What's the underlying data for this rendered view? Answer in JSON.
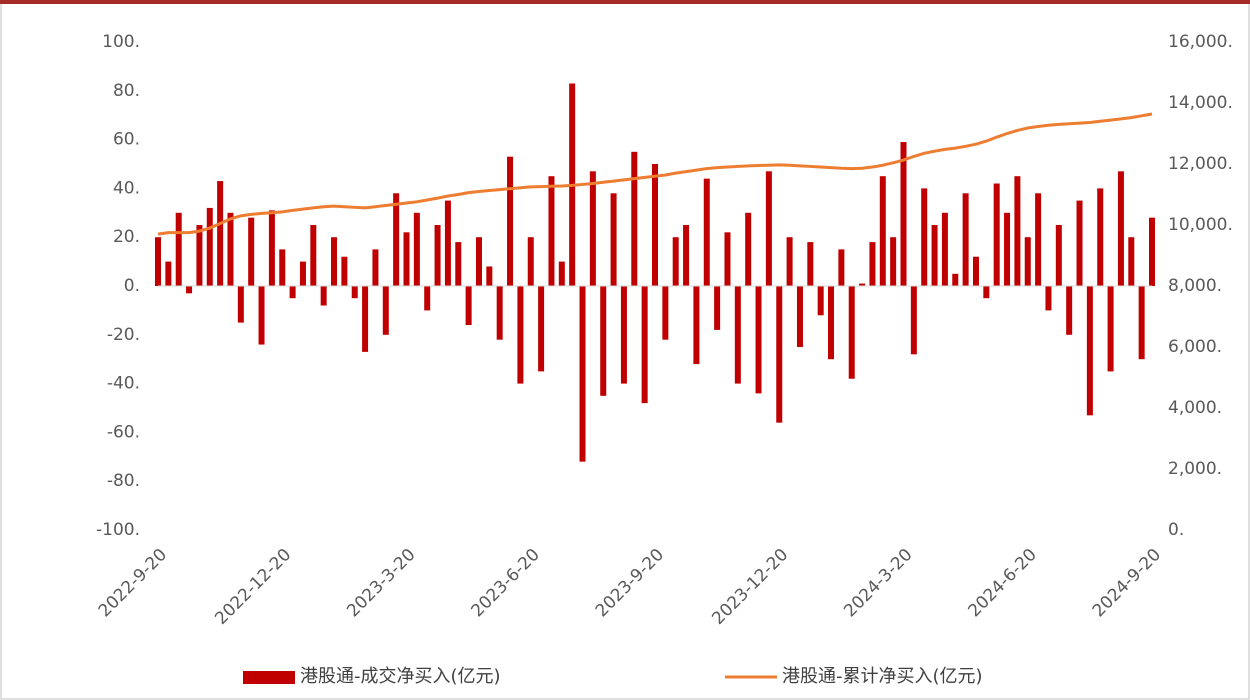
{
  "chart_data": {
    "type": "bar_line",
    "categories": [
      "2022-9-20",
      null,
      null,
      null,
      null,
      null,
      null,
      null,
      null,
      null,
      null,
      null,
      "2022-12-20",
      null,
      null,
      null,
      null,
      null,
      null,
      null,
      null,
      null,
      null,
      null,
      "2023-3-20",
      null,
      null,
      null,
      null,
      null,
      null,
      null,
      null,
      null,
      null,
      null,
      "2023-6-20",
      null,
      null,
      null,
      null,
      null,
      null,
      null,
      null,
      null,
      null,
      null,
      "2023-9-20",
      null,
      null,
      null,
      null,
      null,
      null,
      null,
      null,
      null,
      null,
      null,
      "2023-12-20",
      null,
      null,
      null,
      null,
      null,
      null,
      null,
      null,
      null,
      null,
      null,
      "2024-3-20",
      null,
      null,
      null,
      null,
      null,
      null,
      null,
      null,
      null,
      null,
      null,
      "2024-6-20",
      null,
      null,
      null,
      null,
      null,
      null,
      null,
      null,
      null,
      null,
      null,
      "2024-9-20"
    ],
    "series": [
      {
        "name": "港股通-成交净买入(亿元)",
        "color": "#c00000",
        "kind": "bar",
        "values": [
          20,
          10,
          30,
          -3,
          25,
          32,
          43,
          30,
          -15,
          28,
          -24,
          31,
          15,
          -5,
          10,
          25,
          -8,
          20,
          12,
          -5,
          -27,
          15,
          -20,
          38,
          22,
          30,
          -10,
          25,
          35,
          18,
          -16,
          20,
          8,
          -22,
          53,
          -40,
          20,
          -35,
          45,
          10,
          83,
          -72,
          47,
          -45,
          38,
          -40,
          55,
          -48,
          50,
          -22,
          20,
          25,
          -32,
          44,
          -18,
          22,
          -40,
          30,
          -44,
          47,
          -56,
          20,
          -25,
          18,
          -12,
          -30,
          15,
          -38,
          1,
          18,
          45,
          20,
          59,
          -28,
          40,
          25,
          30,
          5,
          38,
          12,
          -5,
          42,
          30,
          45,
          20,
          38,
          -10,
          25,
          -20,
          35,
          -53,
          40,
          -35,
          47,
          20,
          -30,
          28
        ]
      },
      {
        "name": "港股通-累计净买入(亿元)",
        "color": "#ed7d31",
        "kind": "line",
        "axis": "y2",
        "values": [
          9700,
          9750,
          9750,
          9750,
          9800,
          9900,
          10050,
          10200,
          10300,
          10350,
          10380,
          10400,
          10430,
          10480,
          10520,
          10560,
          10600,
          10620,
          10600,
          10580,
          10560,
          10600,
          10640,
          10680,
          10720,
          10760,
          10820,
          10880,
          10950,
          11000,
          11060,
          11100,
          11130,
          11160,
          11190,
          11220,
          11250,
          11260,
          11270,
          11280,
          11300,
          11330,
          11360,
          11400,
          11440,
          11480,
          11520,
          11560,
          11600,
          11640,
          11700,
          11750,
          11800,
          11850,
          11880,
          11900,
          11920,
          11940,
          11950,
          11960,
          11970,
          11960,
          11940,
          11920,
          11900,
          11880,
          11860,
          11850,
          11860,
          11900,
          11960,
          12040,
          12130,
          12250,
          12350,
          12420,
          12480,
          12520,
          12580,
          12650,
          12750,
          12880,
          13000,
          13100,
          13180,
          13230,
          13270,
          13300,
          13320,
          13340,
          13360,
          13400,
          13440,
          13480,
          13520,
          13580,
          13640
        ]
      }
    ],
    "ylim": [
      -100,
      100
    ],
    "yticks": [
      {
        "value": -100,
        "label": "-100."
      },
      {
        "value": -80,
        "label": "-80."
      },
      {
        "value": -60,
        "label": "-60."
      },
      {
        "value": -40,
        "label": "-40."
      },
      {
        "value": -20,
        "label": "-20."
      },
      {
        "value": 0,
        "label": "0."
      },
      {
        "value": 20,
        "label": "20."
      },
      {
        "value": 40,
        "label": "40."
      },
      {
        "value": 60,
        "label": "60."
      },
      {
        "value": 80,
        "label": "80."
      },
      {
        "value": 100,
        "label": "100."
      }
    ],
    "y2lim": [
      0,
      16000
    ],
    "y2ticks": [
      {
        "value": 0,
        "label": "0."
      },
      {
        "value": 2000,
        "label": "2,000."
      },
      {
        "value": 4000,
        "label": "4,000."
      },
      {
        "value": 6000,
        "label": "6,000."
      },
      {
        "value": 8000,
        "label": "8,000."
      },
      {
        "value": 10000,
        "label": "10,000."
      },
      {
        "value": 12000,
        "label": "12,000."
      },
      {
        "value": 14000,
        "label": "14,000."
      },
      {
        "value": 16000,
        "label": "16,000."
      }
    ],
    "legend": "bottom"
  }
}
